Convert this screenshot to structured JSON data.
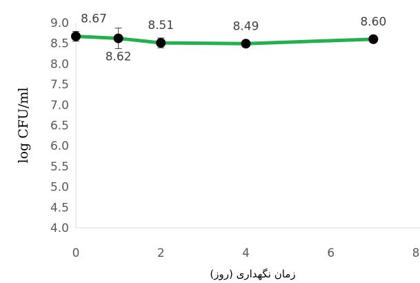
{
  "chart_data": {
    "type": "line",
    "title": "",
    "xlabel": "زمان نگهداری (روز)",
    "ylabel": "log CFU/ml",
    "xlim": [
      0,
      8
    ],
    "ylim": [
      4.0,
      9.0
    ],
    "x_ticks": [
      "0",
      "2",
      "4",
      "6",
      "8"
    ],
    "y_ticks": [
      "4.0",
      "4.5",
      "5.0",
      "5.5",
      "6.0",
      "6.5",
      "7.0",
      "7.5",
      "8.0",
      "8.5",
      "9.0"
    ],
    "grid": false,
    "legend": "none",
    "series": [
      {
        "x": [
          0,
          1,
          2,
          4,
          7
        ],
        "y": [
          8.67,
          8.62,
          8.51,
          8.49,
          8.6
        ],
        "y_error": [
          0.12,
          0.25,
          0.12,
          0.04,
          0.08
        ],
        "labels": [
          "8.67",
          "8.62",
          "8.51",
          "8.49",
          "8.60"
        ],
        "line_color": "#22b14c",
        "marker_color": "#000000"
      }
    ]
  }
}
